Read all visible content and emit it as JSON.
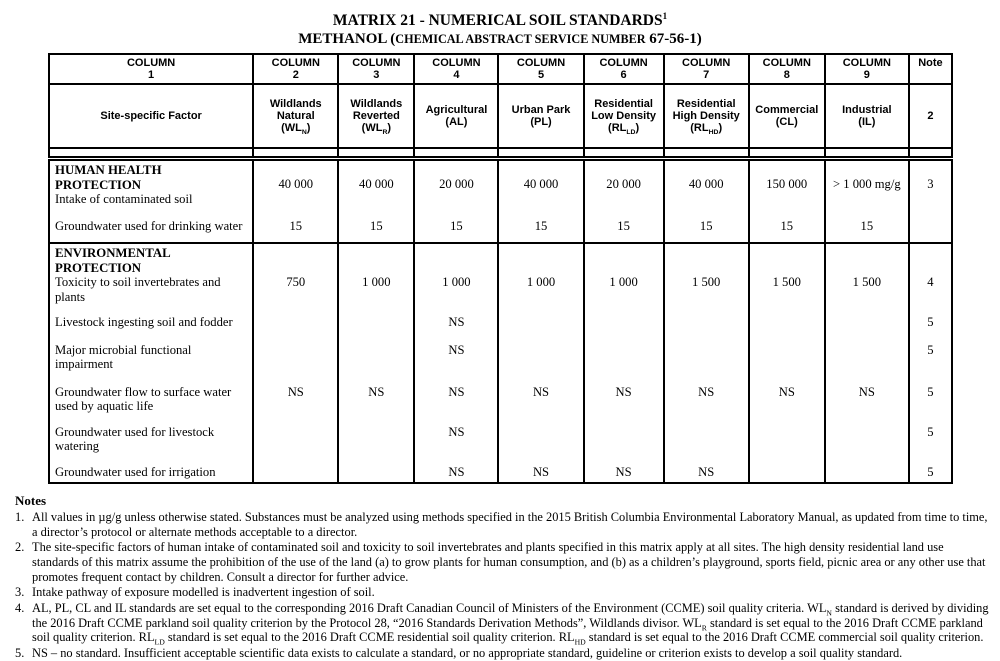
{
  "title": {
    "line1": "MATRIX 21 - NUMERICAL SOIL STANDARDS",
    "sup": "1",
    "line2_parts": [
      "METHANOL (",
      "CHEMICAL ABSTRACT SERVICE NUMBER",
      " 67-56-1)"
    ]
  },
  "table": {
    "columns": [
      {
        "top": [
          "COLUMN",
          "1"
        ],
        "label": [
          [
            "Site-specific Factor"
          ]
        ]
      },
      {
        "top": [
          "COLUMN",
          "2"
        ],
        "label": [
          [
            "Wildlands"
          ],
          [
            "Natural"
          ],
          [
            "(WL",
            {
              "sub": "N"
            },
            ")"
          ]
        ]
      },
      {
        "top": [
          "COLUMN",
          "3"
        ],
        "label": [
          [
            "Wildlands"
          ],
          [
            "Reverted"
          ],
          [
            "(WL",
            {
              "sub": "R"
            },
            ")"
          ]
        ]
      },
      {
        "top": [
          "COLUMN",
          "4"
        ],
        "label": [
          [
            "Agricultural"
          ],
          [
            "(AL)"
          ]
        ]
      },
      {
        "top": [
          "COLUMN",
          "5"
        ],
        "label": [
          [
            "Urban Park"
          ],
          [
            "(PL)"
          ]
        ]
      },
      {
        "top": [
          "COLUMN",
          "6"
        ],
        "label": [
          [
            "Residential"
          ],
          [
            "Low Density"
          ],
          [
            "(RL",
            {
              "sub": "LD"
            },
            ")"
          ]
        ]
      },
      {
        "top": [
          "COLUMN",
          "7"
        ],
        "label": [
          [
            "Residential"
          ],
          [
            "High Density"
          ],
          [
            "(RL",
            {
              "sub": "HD"
            },
            ")"
          ]
        ]
      },
      {
        "top": [
          "COLUMN",
          "8"
        ],
        "label": [
          [
            "Commercial"
          ],
          [
            "(CL)"
          ]
        ]
      },
      {
        "top": [
          "COLUMN",
          "9"
        ],
        "label": [
          [
            "Industrial"
          ],
          [
            "(IL)"
          ]
        ]
      },
      {
        "top": [
          "Note"
        ],
        "label": [
          [
            "2"
          ]
        ]
      }
    ],
    "sections": [
      {
        "title_lines": [
          "HUMAN HEALTH  PROTECTION"
        ],
        "rows": [
          {
            "factor": "Intake of contaminated soil",
            "values": [
              "40 000",
              "40 000",
              "20 000",
              "40 000",
              "20 000",
              "40 000",
              "150 000",
              "> 1 000 mg/g"
            ],
            "note": "3"
          },
          {
            "factor": "Groundwater used for drinking water",
            "values": [
              "15",
              "15",
              "15",
              "15",
              "15",
              "15",
              "15",
              "15"
            ],
            "note": ""
          }
        ]
      },
      {
        "title_lines": [
          "ENVIRONMENTAL",
          "PROTECTION"
        ],
        "rows": [
          {
            "factor": "Toxicity to soil invertebrates and plants",
            "values": [
              "750",
              "1 000",
              "1 000",
              "1 000",
              "1 000",
              "1 500",
              "1 500",
              "1 500"
            ],
            "note": "4"
          },
          {
            "factor": "Livestock ingesting soil and fodder",
            "values": [
              "",
              "",
              "NS",
              "",
              "",
              "",
              "",
              ""
            ],
            "note": "5"
          },
          {
            "factor": "Major microbial functional impairment",
            "values": [
              "",
              "",
              "NS",
              "",
              "",
              "",
              "",
              ""
            ],
            "note": "5"
          },
          {
            "factor": "Groundwater flow to surface water used by aquatic life",
            "values": [
              "NS",
              "NS",
              "NS",
              "NS",
              "NS",
              "NS",
              "NS",
              "NS"
            ],
            "note": "5"
          },
          {
            "factor": "Groundwater used for livestock watering",
            "values": [
              "",
              "",
              "NS",
              "",
              "",
              "",
              "",
              ""
            ],
            "note": "5"
          },
          {
            "factor": "Groundwater used for irrigation",
            "values": [
              "",
              "",
              "NS",
              "NS",
              "NS",
              "NS",
              "",
              ""
            ],
            "note": "5"
          }
        ]
      }
    ]
  },
  "notes": {
    "title": "Notes",
    "items": [
      {
        "num": "1.",
        "segments": [
          "All values in µg/g unless otherwise stated.  Substances must be analyzed using methods specified in the 2015 British Columbia Environmental Laboratory Manual, as updated from time to time, a director’s protocol or alternate methods acceptable to a director."
        ]
      },
      {
        "num": "2.",
        "segments": [
          "The site-specific factors of human intake of contaminated soil and toxicity to soil invertebrates and plants specified in this matrix apply at all sites. The high density residential land use standards of this matrix assume the prohibition of the use of the land (a) to grow plants for human consumption, and (b) as a children’s playground, sports field, picnic area or any other use that promotes frequent contact by children. Consult a director for further advice."
        ]
      },
      {
        "num": "3.",
        "segments": [
          "Intake pathway of exposure modelled is inadvertent ingestion of soil."
        ]
      },
      {
        "num": "4.",
        "segments": [
          "AL, PL, CL and IL standards are set equal to the corresponding 2016 Draft Canadian Council of Ministers of the Environment (CCME) soil quality criteria. WL",
          {
            "sub": "N"
          },
          " standard is derived by dividing the 2016 Draft CCME parkland soil quality criterion by the Protocol 28, “2016 Standards Derivation Methods”, Wildlands divisor.  WL",
          {
            "sub": "R"
          },
          " standard is set equal to the 2016 Draft CCME parkland soil quality criterion. RL",
          {
            "sub": "LD"
          },
          " standard is set equal to the 2016 Draft CCME residential soil quality criterion. RL",
          {
            "sub": "HD"
          },
          " standard is set equal to the 2016 Draft CCME commercial soil quality criterion."
        ]
      },
      {
        "num": "5.",
        "segments": [
          "NS – no standard. Insufficient acceptable scientific data exists to calculate a standard, or no appropriate standard, guideline or criterion exists to develop a soil quality standard."
        ]
      }
    ]
  }
}
